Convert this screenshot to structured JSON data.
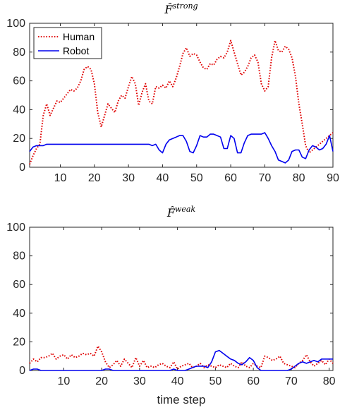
{
  "chart_data": [
    {
      "type": "line",
      "title_base": "F̂",
      "title_sup": "strong",
      "xlabel": "",
      "ylabel": "",
      "xlim": [
        1,
        90
      ],
      "ylim": [
        0,
        100
      ],
      "xticks": [
        10,
        20,
        30,
        40,
        50,
        60,
        70,
        80,
        90
      ],
      "yticks": [
        0,
        20,
        40,
        60,
        80,
        100
      ],
      "legend": {
        "position": "top-left"
      },
      "series": [
        {
          "name": "Human",
          "color": "#e00000",
          "style": "dotted",
          "x": [
            1,
            2,
            3,
            4,
            5,
            6,
            7,
            8,
            9,
            10,
            11,
            12,
            13,
            14,
            15,
            16,
            17,
            18,
            19,
            20,
            21,
            22,
            23,
            24,
            25,
            26,
            27,
            28,
            29,
            30,
            31,
            32,
            33,
            34,
            35,
            36,
            37,
            38,
            39,
            40,
            41,
            42,
            43,
            44,
            45,
            46,
            47,
            48,
            49,
            50,
            51,
            52,
            53,
            54,
            55,
            56,
            57,
            58,
            59,
            60,
            61,
            62,
            63,
            64,
            65,
            66,
            67,
            68,
            69,
            70,
            71,
            72,
            73,
            74,
            75,
            76,
            77,
            78,
            79,
            80,
            81,
            82,
            83,
            84,
            85,
            86,
            87,
            88,
            89,
            90
          ],
          "values": [
            2,
            8,
            13,
            16,
            36,
            44,
            36,
            41,
            46,
            45,
            48,
            51,
            54,
            53,
            55,
            60,
            68,
            70,
            68,
            58,
            38,
            28,
            36,
            44,
            41,
            38,
            46,
            50,
            48,
            56,
            63,
            58,
            43,
            52,
            58,
            46,
            44,
            56,
            55,
            57,
            55,
            60,
            56,
            62,
            70,
            79,
            83,
            77,
            79,
            78,
            73,
            69,
            68,
            72,
            71,
            75,
            77,
            76,
            80,
            88,
            80,
            72,
            64,
            66,
            70,
            76,
            78,
            73,
            58,
            53,
            56,
            76,
            88,
            81,
            80,
            84,
            82,
            76,
            63,
            44,
            30,
            15,
            10,
            12,
            14,
            16,
            18,
            20,
            22,
            24
          ]
        },
        {
          "name": "Robot",
          "color": "#0000ee",
          "style": "solid",
          "x": [
            1,
            2,
            3,
            4,
            5,
            6,
            7,
            8,
            9,
            10,
            11,
            12,
            13,
            14,
            15,
            16,
            17,
            18,
            19,
            20,
            21,
            22,
            23,
            24,
            25,
            26,
            27,
            28,
            29,
            30,
            31,
            32,
            33,
            34,
            35,
            36,
            37,
            38,
            39,
            40,
            41,
            42,
            43,
            44,
            45,
            46,
            47,
            48,
            49,
            50,
            51,
            52,
            53,
            54,
            55,
            56,
            57,
            58,
            59,
            60,
            61,
            62,
            63,
            64,
            65,
            66,
            67,
            68,
            69,
            70,
            71,
            72,
            73,
            74,
            75,
            76,
            77,
            78,
            79,
            80,
            81,
            82,
            83,
            84,
            85,
            86,
            87,
            88,
            89,
            90
          ],
          "values": [
            11,
            14,
            15,
            15,
            15,
            16,
            16,
            16,
            16,
            16,
            16,
            16,
            16,
            16,
            16,
            16,
            16,
            16,
            16,
            16,
            16,
            16,
            16,
            16,
            16,
            16,
            16,
            16,
            16,
            16,
            16,
            16,
            16,
            16,
            16,
            16,
            15,
            16,
            12,
            10,
            16,
            19,
            20,
            21,
            22,
            22,
            18,
            11,
            10,
            15,
            22,
            21,
            21,
            23,
            23,
            22,
            21,
            13,
            13,
            22,
            20,
            10,
            10,
            17,
            22,
            23,
            23,
            23,
            23,
            24,
            20,
            15,
            11,
            5,
            4,
            3,
            5,
            11,
            12,
            12,
            7,
            6,
            12,
            15,
            14,
            12,
            13,
            16,
            22,
            11
          ]
        }
      ]
    },
    {
      "type": "line",
      "title_base": "F̂",
      "title_sup": "weak",
      "xlabel": "time step",
      "ylabel": "",
      "xlim": [
        1,
        81
      ],
      "ylim": [
        0,
        100
      ],
      "xticks": [
        10,
        20,
        30,
        40,
        50,
        60,
        70,
        80
      ],
      "yticks": [
        0,
        20,
        40,
        60,
        80,
        100
      ],
      "series": [
        {
          "name": "Human",
          "color": "#e00000",
          "style": "dotted",
          "x": [
            1,
            2,
            3,
            4,
            5,
            6,
            7,
            8,
            9,
            10,
            11,
            12,
            13,
            14,
            15,
            16,
            17,
            18,
            19,
            20,
            21,
            22,
            23,
            24,
            25,
            26,
            27,
            28,
            29,
            30,
            31,
            32,
            33,
            34,
            35,
            36,
            37,
            38,
            39,
            40,
            41,
            42,
            43,
            44,
            45,
            46,
            47,
            48,
            49,
            50,
            51,
            52,
            53,
            54,
            55,
            56,
            57,
            58,
            59,
            60,
            61,
            62,
            63,
            64,
            65,
            66,
            67,
            68,
            69,
            70,
            71,
            72,
            73,
            74,
            75,
            76,
            77,
            78,
            79,
            80,
            81
          ],
          "values": [
            5,
            8,
            6,
            9,
            9,
            10,
            12,
            8,
            10,
            11,
            8,
            11,
            9,
            10,
            12,
            11,
            12,
            10,
            17,
            13,
            6,
            2,
            4,
            7,
            3,
            8,
            5,
            2,
            9,
            3,
            7,
            2,
            3,
            2,
            4,
            5,
            3,
            2,
            6,
            1,
            3,
            4,
            5,
            2,
            3,
            5,
            2,
            4,
            3,
            2,
            4,
            3,
            2,
            5,
            3,
            2,
            6,
            3,
            2,
            5,
            3,
            2,
            10,
            9,
            7,
            8,
            10,
            5,
            4,
            3,
            2,
            5,
            7,
            11,
            6,
            3,
            5,
            7,
            4,
            8,
            5
          ]
        },
        {
          "name": "Robot",
          "color": "#0000ee",
          "style": "solid",
          "x": [
            1,
            2,
            3,
            4,
            5,
            6,
            7,
            8,
            9,
            10,
            11,
            12,
            13,
            14,
            15,
            16,
            17,
            18,
            19,
            20,
            21,
            22,
            23,
            24,
            25,
            26,
            27,
            28,
            29,
            30,
            31,
            32,
            33,
            34,
            35,
            36,
            37,
            38,
            39,
            40,
            41,
            42,
            43,
            44,
            45,
            46,
            47,
            48,
            49,
            50,
            51,
            52,
            53,
            54,
            55,
            56,
            57,
            58,
            59,
            60,
            61,
            62,
            63,
            64,
            65,
            66,
            67,
            68,
            69,
            70,
            71,
            72,
            73,
            74,
            75,
            76,
            77,
            78,
            79,
            80,
            81
          ],
          "values": [
            0,
            1,
            1,
            0,
            0,
            0,
            0,
            0,
            0,
            0,
            0,
            0,
            0,
            0,
            0,
            0,
            0,
            0,
            0,
            0,
            1,
            1,
            0,
            0,
            0,
            0,
            0,
            0,
            0,
            0,
            0,
            0,
            0,
            0,
            0,
            0,
            0,
            0,
            1,
            0,
            0,
            0,
            1,
            2,
            3,
            3,
            3,
            2,
            6,
            13,
            14,
            12,
            10,
            8,
            7,
            5,
            4,
            6,
            9,
            7,
            2,
            0,
            0,
            0,
            0,
            0,
            0,
            0,
            0,
            1,
            3,
            5,
            6,
            5,
            6,
            7,
            6,
            8,
            8,
            8,
            8
          ]
        }
      ]
    }
  ]
}
